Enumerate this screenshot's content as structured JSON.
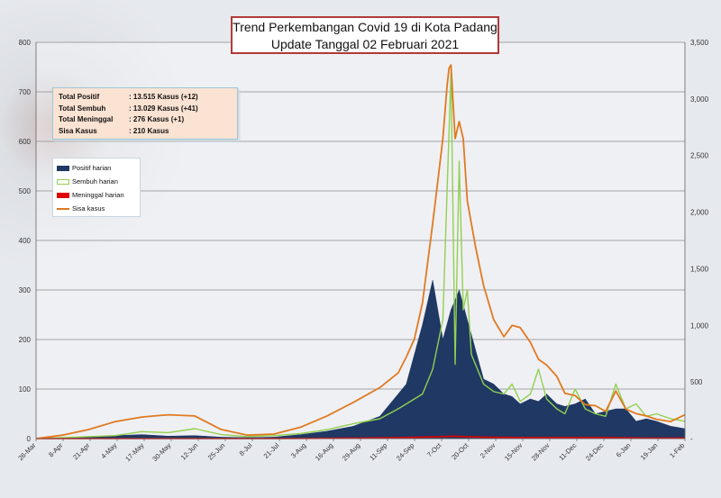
{
  "chart_data": {
    "type": "area",
    "title": "Trend Perkembangan Covid 19 di Kota Padang",
    "subtitle": "Update Tanggal  02 Februari 2021",
    "summary": [
      {
        "label": "Total Positif",
        "value": ": 13.515 Kasus (+12)"
      },
      {
        "label": "Total Sembuh",
        "value": ": 13.029 Kasus (+41)"
      },
      {
        "label": "Total Meninggal",
        "value": ":      276 Kasus (+1)"
      },
      {
        "label": "Sisa Kasus",
        "value": ":      210 Kasus"
      }
    ],
    "legend_position": "left",
    "grid": true,
    "colors": {
      "positif": "#1f3864",
      "sembuh": "#92d050",
      "meninggal": "#e00000",
      "sisa": "#e07a20"
    },
    "x_ticks": [
      "26-Mar",
      "8-Apr",
      "21-Apr",
      "4-May",
      "17-May",
      "30-May",
      "12-Jun",
      "25-Jun",
      "8-Jul",
      "21-Jul",
      "3-Aug",
      "16-Aug",
      "29-Aug",
      "11-Sep",
      "24-Sep",
      "7-Oct",
      "20-Oct",
      "2-Nov",
      "15-Nov",
      "28-Nov",
      "11-Dec",
      "24-Dec",
      "6-Jan",
      "19-Jan",
      "1-Feb"
    ],
    "y_left": {
      "ticks": [
        0,
        100,
        200,
        300,
        400,
        500,
        600,
        700,
        800
      ],
      "ylim": [
        0,
        800
      ]
    },
    "y_right": {
      "ticks": [
        0,
        500,
        1000,
        1500,
        2000,
        2500,
        3000,
        3500
      ],
      "tick_labels": [
        "-",
        "500",
        "1,000",
        "1,500",
        "2,000",
        "2,500",
        "3,000",
        "3,500"
      ],
      "ylim": [
        0,
        3500
      ]
    },
    "series": [
      {
        "name": "Positif harian",
        "axis": "left",
        "style": "area",
        "x": [
          0,
          13,
          26,
          39,
          52,
          65,
          78,
          91,
          104,
          117,
          130,
          143,
          156,
          169,
          178,
          182,
          186,
          190,
          195,
          200,
          204,
          208,
          212,
          216,
          220,
          225,
          230,
          234,
          238,
          243,
          247,
          251,
          256,
          260,
          265,
          270,
          275,
          280,
          285,
          290,
          295,
          300,
          305,
          312,
          319
        ],
        "values": [
          0,
          2,
          4,
          6,
          8,
          5,
          6,
          3,
          2,
          3,
          8,
          15,
          25,
          45,
          90,
          110,
          170,
          230,
          320,
          200,
          260,
          300,
          240,
          180,
          120,
          110,
          90,
          85,
          70,
          80,
          75,
          90,
          70,
          65,
          70,
          80,
          50,
          55,
          60,
          60,
          35,
          40,
          35,
          25,
          20
        ]
      },
      {
        "name": "Sembuh harian",
        "axis": "left",
        "style": "line",
        "x": [
          0,
          13,
          26,
          39,
          52,
          65,
          78,
          91,
          104,
          117,
          130,
          143,
          156,
          169,
          178,
          182,
          186,
          190,
          195,
          200,
          204,
          206,
          208,
          210,
          212,
          214,
          216,
          220,
          225,
          230,
          234,
          238,
          243,
          247,
          251,
          256,
          260,
          265,
          270,
          275,
          280,
          285,
          290,
          295,
          300,
          305,
          312,
          319
        ],
        "values": [
          0,
          2,
          4,
          6,
          14,
          12,
          20,
          8,
          4,
          6,
          10,
          18,
          30,
          40,
          60,
          70,
          80,
          90,
          140,
          240,
          740,
          150,
          560,
          260,
          300,
          170,
          150,
          110,
          95,
          90,
          110,
          75,
          90,
          140,
          80,
          60,
          50,
          100,
          60,
          50,
          45,
          110,
          60,
          70,
          45,
          50,
          40,
          35
        ]
      },
      {
        "name": "Meninggal harian",
        "axis": "left",
        "style": "line",
        "x": [
          0,
          40,
          80,
          120,
          160,
          180,
          190,
          200,
          205,
          210,
          220,
          240,
          260,
          280,
          300,
          319
        ],
        "values": [
          0,
          0,
          0,
          0,
          1,
          2,
          3,
          4,
          5,
          4,
          3,
          2,
          2,
          2,
          1,
          1
        ]
      },
      {
        "name": "Sisa kasus",
        "axis": "right",
        "style": "line",
        "x": [
          0,
          13,
          26,
          39,
          52,
          58,
          65,
          78,
          91,
          104,
          117,
          130,
          143,
          156,
          169,
          178,
          182,
          186,
          190,
          195,
          198,
          200,
          202,
          203,
          204,
          206,
          208,
          210,
          212,
          216,
          220,
          225,
          230,
          234,
          238,
          243,
          247,
          251,
          256,
          260,
          265,
          270,
          275,
          280,
          285,
          290,
          295,
          300,
          305,
          312,
          319
        ],
        "values": [
          0,
          30,
          80,
          150,
          190,
          200,
          210,
          200,
          80,
          30,
          40,
          100,
          200,
          320,
          450,
          580,
          720,
          880,
          1200,
          1900,
          2350,
          2650,
          3100,
          3270,
          3300,
          2650,
          2800,
          2650,
          2100,
          1700,
          1350,
          1050,
          900,
          1000,
          980,
          850,
          700,
          650,
          550,
          400,
          380,
          300,
          290,
          240,
          420,
          260,
          220,
          200,
          170,
          150,
          210
        ]
      }
    ]
  }
}
